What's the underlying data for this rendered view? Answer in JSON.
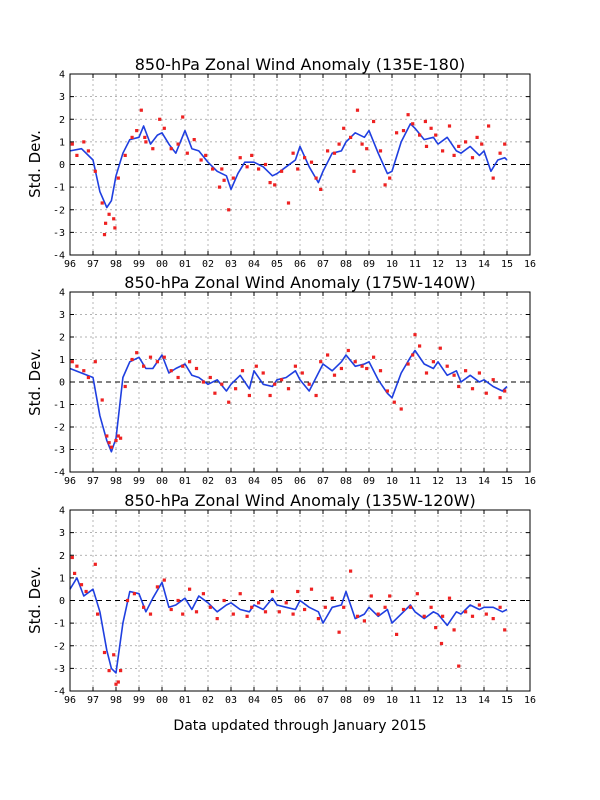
{
  "footer": "Data updated through January 2015",
  "colors": {
    "line": "#1f3fe0",
    "dots": "#ee2222",
    "grid": "#999999"
  },
  "chart_data": [
    {
      "type": "line",
      "title": "850-hPa Zonal Wind Anomaly (135E-180)",
      "ylabel": "Std. Dev.",
      "ylim": [
        -4,
        4
      ],
      "yticks": [
        "4",
        "3",
        "2",
        "1",
        "0",
        "-1",
        "-2",
        "-3",
        "-4"
      ],
      "xticks": [
        "96",
        "97",
        "98",
        "99",
        "00",
        "01",
        "02",
        "03",
        "04",
        "05",
        "06",
        "07",
        "08",
        "09",
        "10",
        "11",
        "12",
        "13",
        "14",
        "15",
        "16"
      ],
      "xlim": [
        1996,
        2016
      ],
      "grid": true,
      "series": [
        {
          "style": "line",
          "x": [
            1996.0,
            1996.5,
            1997.0,
            1997.3,
            1997.6,
            1997.8,
            1998.0,
            1998.3,
            1998.6,
            1999.0,
            1999.2,
            1999.5,
            1999.8,
            2000.0,
            2000.3,
            2000.6,
            2001.0,
            2001.3,
            2001.6,
            2002.0,
            2002.4,
            2002.8,
            2003.0,
            2003.3,
            2003.6,
            2004.0,
            2004.4,
            2004.8,
            2005.0,
            2005.4,
            2005.8,
            2006.0,
            2006.4,
            2006.8,
            2007.0,
            2007.4,
            2007.8,
            2008.0,
            2008.4,
            2008.8,
            2009.0,
            2009.4,
            2009.8,
            2010.0,
            2010.4,
            2010.8,
            2011.0,
            2011.4,
            2011.8,
            2012.0,
            2012.4,
            2012.8,
            2013.0,
            2013.4,
            2013.8,
            2014.0,
            2014.3,
            2014.6,
            2014.9,
            2015.0
          ],
          "y": [
            0.6,
            0.7,
            0.2,
            -1.2,
            -1.9,
            -1.6,
            -0.5,
            0.5,
            1.1,
            1.2,
            1.7,
            0.9,
            1.3,
            1.4,
            0.9,
            0.5,
            1.5,
            0.7,
            0.6,
            0.1,
            -0.3,
            -0.5,
            -1.1,
            -0.4,
            0.1,
            0.1,
            -0.1,
            -0.5,
            -0.4,
            -0.1,
            0.2,
            0.8,
            -0.1,
            -0.8,
            -0.3,
            0.5,
            0.6,
            1.0,
            1.4,
            1.2,
            1.5,
            0.5,
            -0.4,
            -0.3,
            1.0,
            1.8,
            1.6,
            1.1,
            1.2,
            0.9,
            1.2,
            0.6,
            0.5,
            0.8,
            0.4,
            0.6,
            -0.3,
            0.2,
            0.3,
            0.2
          ]
        },
        {
          "style": "points",
          "x": [
            1996.1,
            1996.3,
            1996.6,
            1996.8,
            1997.1,
            1997.4,
            1997.5,
            1997.7,
            1997.9,
            1998.1,
            1998.4,
            1998.7,
            1998.9,
            1999.1,
            1999.3,
            1999.6,
            1999.9,
            2000.1,
            2000.4,
            2000.7,
            2000.9,
            2001.1,
            2001.4,
            2001.7,
            2001.9,
            2002.2,
            2002.5,
            2002.7,
            2002.9,
            2003.1,
            2003.4,
            2003.7,
            2003.9,
            2004.2,
            2004.5,
            2004.7,
            2004.9,
            2005.2,
            2005.5,
            2005.7,
            2005.9,
            2006.2,
            2006.5,
            2006.7,
            2006.9,
            2007.2,
            2007.5,
            2007.7,
            2007.9,
            2008.2,
            2008.5,
            2008.7,
            2008.9,
            2009.2,
            2009.5,
            2009.7,
            2009.9,
            2010.2,
            2010.5,
            2010.7,
            2010.9,
            2011.2,
            2011.5,
            2011.7,
            2011.9,
            2012.2,
            2012.5,
            2012.7,
            2012.9,
            2013.2,
            2013.5,
            2013.7,
            2013.9,
            2014.2,
            2014.4,
            2014.7,
            2014.9,
            1997.55,
            1997.95,
            1999.25,
            2002.6,
            2008.35,
            2011.45
          ],
          "y": [
            0.9,
            0.4,
            1.0,
            0.6,
            -0.3,
            -1.7,
            -3.1,
            -2.2,
            -2.4,
            -0.6,
            0.4,
            1.2,
            1.5,
            2.4,
            1.0,
            0.7,
            2.0,
            1.6,
            0.7,
            0.9,
            2.1,
            0.5,
            1.1,
            0.2,
            0.4,
            -0.2,
            -1.0,
            -0.7,
            -2.0,
            -0.6,
            0.3,
            -0.1,
            0.4,
            -0.2,
            0.0,
            -0.8,
            -0.9,
            -0.3,
            -1.7,
            0.5,
            -0.2,
            0.3,
            0.1,
            -0.6,
            -1.1,
            0.6,
            0.5,
            0.9,
            1.6,
            1.2,
            2.4,
            0.9,
            0.7,
            1.9,
            0.6,
            -0.9,
            -0.6,
            1.4,
            1.5,
            2.2,
            1.8,
            1.3,
            0.8,
            1.6,
            1.3,
            0.6,
            1.7,
            0.4,
            0.8,
            1.0,
            0.3,
            1.2,
            0.9,
            1.7,
            -0.6,
            0.5,
            0.9,
            -2.6,
            -2.8,
            1.2,
            -0.2,
            -0.3,
            1.9
          ]
        }
      ]
    },
    {
      "type": "line",
      "title": "850-hPa Zonal Wind Anomaly (175W-140W)",
      "ylabel": "Std. Dev.",
      "ylim": [
        -4,
        4
      ],
      "yticks": [
        "4",
        "3",
        "2",
        "1",
        "0",
        "-1",
        "-2",
        "-3",
        "-4"
      ],
      "xticks": [
        "96",
        "97",
        "98",
        "99",
        "00",
        "01",
        "02",
        "03",
        "04",
        "05",
        "06",
        "07",
        "08",
        "09",
        "10",
        "11",
        "12",
        "13",
        "14",
        "15",
        "16"
      ],
      "xlim": [
        1996,
        2016
      ],
      "grid": true,
      "series": [
        {
          "style": "line",
          "x": [
            1996.0,
            1996.5,
            1997.0,
            1997.3,
            1997.6,
            1997.8,
            1998.0,
            1998.3,
            1998.6,
            1999.0,
            1999.3,
            1999.6,
            2000.0,
            2000.3,
            2000.6,
            2001.0,
            2001.3,
            2001.6,
            2002.0,
            2002.4,
            2002.8,
            2003.0,
            2003.4,
            2003.8,
            2004.0,
            2004.4,
            2004.8,
            2005.0,
            2005.4,
            2005.8,
            2006.0,
            2006.4,
            2006.8,
            2007.0,
            2007.4,
            2007.8,
            2008.0,
            2008.4,
            2008.8,
            2009.0,
            2009.4,
            2009.8,
            2010.0,
            2010.4,
            2010.8,
            2011.0,
            2011.4,
            2011.8,
            2012.0,
            2012.4,
            2012.8,
            2013.0,
            2013.4,
            2013.8,
            2014.0,
            2014.4,
            2014.8,
            2015.0
          ],
          "y": [
            0.6,
            0.4,
            0.2,
            -1.5,
            -2.6,
            -3.1,
            -2.5,
            0.2,
            0.9,
            1.1,
            0.6,
            0.6,
            1.2,
            0.4,
            0.6,
            0.8,
            0.3,
            0.2,
            -0.1,
            0.1,
            -0.4,
            -0.1,
            0.3,
            -0.3,
            0.5,
            -0.1,
            -0.2,
            0.1,
            0.2,
            0.5,
            0.1,
            -0.4,
            0.4,
            0.8,
            0.5,
            0.9,
            1.2,
            0.7,
            0.8,
            0.9,
            0.1,
            -0.5,
            -0.7,
            0.4,
            1.1,
            1.4,
            0.8,
            0.6,
            0.9,
            0.3,
            0.5,
            0.0,
            0.3,
            0.0,
            0.1,
            -0.2,
            -0.4,
            -0.2
          ]
        },
        {
          "style": "points",
          "x": [
            1996.1,
            1996.3,
            1996.6,
            1996.8,
            1997.1,
            1997.4,
            1997.6,
            1997.8,
            1998.0,
            1998.2,
            1998.4,
            1998.7,
            1998.9,
            1999.2,
            1999.5,
            1999.8,
            2000.1,
            2000.4,
            2000.7,
            2000.9,
            2001.2,
            2001.5,
            2001.8,
            2002.1,
            2002.3,
            2002.6,
            2002.9,
            2003.2,
            2003.5,
            2003.8,
            2004.1,
            2004.4,
            2004.7,
            2004.9,
            2005.2,
            2005.5,
            2005.8,
            2006.1,
            2006.4,
            2006.7,
            2006.9,
            2007.2,
            2007.5,
            2007.8,
            2008.1,
            2008.4,
            2008.7,
            2008.9,
            2009.2,
            2009.5,
            2009.8,
            2010.1,
            2010.4,
            2010.7,
            2010.9,
            2011.2,
            2011.5,
            2011.8,
            2012.1,
            2012.4,
            2012.7,
            2012.9,
            2013.2,
            2013.5,
            2013.8,
            2014.1,
            2014.4,
            2014.7,
            2014.9,
            1997.7,
            1998.1,
            2011.0
          ],
          "y": [
            0.9,
            0.7,
            0.5,
            0.2,
            0.9,
            -0.8,
            -2.4,
            -2.9,
            -2.6,
            -2.5,
            -0.2,
            1.0,
            1.3,
            0.7,
            1.1,
            0.9,
            1.1,
            0.5,
            0.2,
            0.7,
            0.9,
            0.6,
            0.0,
            0.2,
            -0.5,
            -0.1,
            -0.9,
            -0.3,
            0.5,
            -0.6,
            0.7,
            0.4,
            -0.6,
            -0.1,
            0.1,
            -0.3,
            0.7,
            0.4,
            -0.1,
            -0.6,
            0.9,
            1.2,
            0.3,
            0.6,
            1.4,
            0.9,
            0.7,
            0.6,
            1.1,
            0.5,
            -0.4,
            -0.9,
            -1.2,
            0.8,
            1.2,
            1.6,
            0.4,
            0.9,
            1.5,
            0.7,
            0.3,
            -0.2,
            0.5,
            -0.3,
            0.4,
            -0.5,
            0.1,
            -0.7,
            -0.4,
            -2.7,
            -2.4,
            2.1
          ]
        }
      ]
    },
    {
      "type": "line",
      "title": "850-hPa Zonal Wind Anomaly (135W-120W)",
      "ylabel": "Std. Dev.",
      "ylim": [
        -4,
        4
      ],
      "yticks": [
        "4",
        "3",
        "2",
        "1",
        "0",
        "-1",
        "-2",
        "-3",
        "-4"
      ],
      "xticks": [
        "96",
        "97",
        "98",
        "99",
        "00",
        "01",
        "02",
        "03",
        "04",
        "05",
        "06",
        "07",
        "08",
        "09",
        "10",
        "11",
        "12",
        "13",
        "14",
        "15",
        "16"
      ],
      "xlim": [
        1996,
        2016
      ],
      "grid": true,
      "series": [
        {
          "style": "line",
          "x": [
            1996.0,
            1996.3,
            1996.6,
            1997.0,
            1997.3,
            1997.6,
            1997.8,
            1998.0,
            1998.3,
            1998.6,
            1999.0,
            1999.3,
            1999.6,
            2000.0,
            2000.3,
            2000.6,
            2001.0,
            2001.3,
            2001.6,
            2002.0,
            2002.4,
            2002.8,
            2003.0,
            2003.4,
            2003.8,
            2004.0,
            2004.4,
            2004.8,
            2005.0,
            2005.4,
            2005.8,
            2006.0,
            2006.4,
            2006.8,
            2007.0,
            2007.4,
            2007.8,
            2008.0,
            2008.4,
            2008.8,
            2009.0,
            2009.4,
            2009.8,
            2010.0,
            2010.4,
            2010.8,
            2011.0,
            2011.4,
            2011.8,
            2012.0,
            2012.4,
            2012.8,
            2013.0,
            2013.4,
            2013.8,
            2014.0,
            2014.4,
            2014.8,
            2015.0
          ],
          "y": [
            0.5,
            1.0,
            0.2,
            0.5,
            -0.5,
            -2.2,
            -3.0,
            -3.2,
            -1.0,
            0.4,
            0.3,
            -0.5,
            0.1,
            0.8,
            -0.3,
            -0.2,
            0.1,
            -0.4,
            0.2,
            -0.1,
            -0.5,
            -0.2,
            -0.1,
            -0.4,
            -0.5,
            -0.2,
            -0.4,
            0.1,
            -0.2,
            -0.3,
            -0.4,
            0.0,
            -0.3,
            -0.5,
            -1.0,
            -0.3,
            -0.2,
            0.4,
            -0.8,
            -0.6,
            -0.3,
            -0.7,
            -0.4,
            -1.0,
            -0.6,
            -0.2,
            -0.5,
            -0.8,
            -0.5,
            -0.6,
            -1.1,
            -0.5,
            -0.6,
            -0.2,
            -0.4,
            -0.3,
            -0.3,
            -0.5,
            -0.4
          ]
        },
        {
          "style": "points",
          "x": [
            1996.1,
            1996.2,
            1996.5,
            1996.7,
            1997.1,
            1997.2,
            1997.5,
            1997.7,
            1997.9,
            1998.1,
            1998.2,
            1998.5,
            1998.8,
            1999.2,
            1999.5,
            1999.8,
            2000.1,
            2000.4,
            2000.7,
            2000.9,
            2001.2,
            2001.5,
            2001.8,
            2002.1,
            2002.4,
            2002.7,
            2003.1,
            2003.4,
            2003.7,
            2003.9,
            2004.2,
            2004.5,
            2004.8,
            2005.1,
            2005.4,
            2005.7,
            2005.9,
            2006.2,
            2006.5,
            2006.8,
            2007.1,
            2007.4,
            2007.7,
            2007.9,
            2008.2,
            2008.5,
            2008.8,
            2009.1,
            2009.4,
            2009.7,
            2009.9,
            2010.2,
            2010.5,
            2010.8,
            2011.1,
            2011.4,
            2011.7,
            2011.9,
            2012.2,
            2012.5,
            2012.7,
            2012.9,
            2013.2,
            2013.5,
            2013.8,
            2014.1,
            2014.4,
            2014.7,
            2014.9,
            1998.0,
            2012.15
          ],
          "y": [
            1.9,
            1.2,
            0.7,
            0.4,
            1.6,
            -0.6,
            -2.3,
            -3.1,
            -2.4,
            -3.6,
            -3.1,
            0.0,
            0.3,
            -0.3,
            -0.6,
            0.6,
            0.9,
            -0.4,
            0.0,
            -0.6,
            0.5,
            -0.5,
            0.3,
            -0.3,
            -0.8,
            0.0,
            -0.6,
            0.3,
            -0.7,
            -0.3,
            -0.1,
            -0.5,
            0.4,
            -0.5,
            -0.1,
            -0.6,
            0.4,
            -0.4,
            0.5,
            -0.8,
            -0.3,
            0.1,
            -1.4,
            -0.3,
            1.3,
            -0.7,
            -0.9,
            0.2,
            -0.6,
            -0.3,
            0.2,
            -1.5,
            -0.4,
            -0.3,
            0.3,
            -0.7,
            -0.3,
            -1.2,
            -0.7,
            0.1,
            -1.3,
            -2.9,
            -0.5,
            -0.7,
            -0.2,
            -0.6,
            -0.8,
            -0.3,
            -1.3,
            -3.7,
            -1.9
          ]
        }
      ]
    }
  ]
}
